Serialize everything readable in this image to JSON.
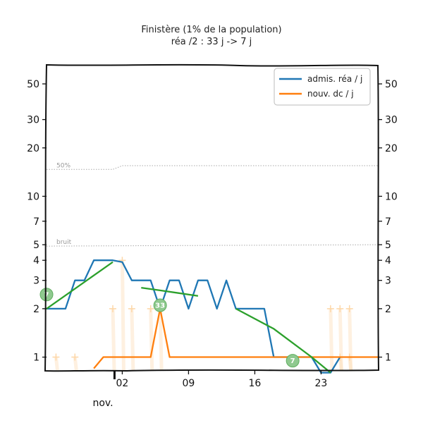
{
  "chart_data": {
    "type": "line",
    "title": "Finistère (1% de la population)",
    "subtitle": "réa /2 : 33 j -> 7 j",
    "y_scale": "log",
    "ylim": [
      0.83,
      65
    ],
    "xlim": [
      "2020-10-25",
      "2020-11-29"
    ],
    "x_ticks": [
      "2020-11-02",
      "2020-11-09",
      "2020-11-16",
      "2020-11-23"
    ],
    "x_tick_labels": [
      "02",
      "09",
      "16",
      "23"
    ],
    "month_label": "nov.",
    "y_ticks": [
      1,
      2,
      3,
      4,
      5,
      7,
      10,
      20,
      30,
      50
    ],
    "y_tick_labels": [
      "1",
      "2",
      "3",
      "4",
      "5",
      "7",
      "10",
      "20",
      "30",
      "50"
    ],
    "reference_lines": [
      {
        "label": "50%",
        "points": [
          [
            "2020-10-25",
            14.7
          ],
          [
            "2020-11-01",
            14.7
          ],
          [
            "2020-11-02",
            15.5
          ],
          [
            "2020-11-29",
            15.5
          ]
        ]
      },
      {
        "label": "bruit",
        "points": [
          [
            "2020-10-25",
            4.9
          ],
          [
            "2020-11-29",
            5.0
          ]
        ]
      }
    ],
    "legend": {
      "position": "top-right"
    },
    "series": [
      {
        "name": "admis. réa / j",
        "color": "#1f77b4",
        "x": [
          "2020-10-25",
          "2020-10-26",
          "2020-10-27",
          "2020-10-28",
          "2020-10-29",
          "2020-10-30",
          "2020-10-31",
          "2020-11-01",
          "2020-11-02",
          "2020-11-03",
          "2020-11-04",
          "2020-11-05",
          "2020-11-06",
          "2020-11-07",
          "2020-11-08",
          "2020-11-09",
          "2020-11-10",
          "2020-11-11",
          "2020-11-12",
          "2020-11-13",
          "2020-11-14",
          "2020-11-15",
          "2020-11-16",
          "2020-11-17",
          "2020-11-18",
          "2020-11-19",
          "2020-11-20",
          "2020-11-21",
          "2020-11-22",
          "2020-11-23",
          "2020-11-24",
          "2020-11-25"
        ],
        "values": [
          2,
          2,
          2,
          3,
          3,
          4,
          4,
          4,
          3.9,
          3,
          3,
          3,
          2,
          3,
          3,
          2,
          3,
          3,
          2,
          3,
          2,
          2,
          2,
          2,
          1,
          1,
          1,
          1,
          1,
          0.8,
          0.8,
          1
        ]
      },
      {
        "name": "nouv. dc / j",
        "color": "#ff7f0e",
        "x": [
          "2020-10-30",
          "2020-10-31",
          "2020-11-01",
          "2020-11-02",
          "2020-11-03",
          "2020-11-04",
          "2020-11-05",
          "2020-11-06",
          "2020-11-07",
          "2020-11-08",
          "2020-11-09",
          "2020-11-10",
          "2020-11-11",
          "2020-11-12",
          "2020-11-13",
          "2020-11-14",
          "2020-11-15",
          "2020-11-16",
          "2020-11-17",
          "2020-11-18",
          "2020-11-19",
          "2020-11-20",
          "2020-11-21",
          "2020-11-22",
          "2020-11-23",
          "2020-11-24",
          "2020-11-25",
          "2020-11-26",
          "2020-11-27",
          "2020-11-28",
          "2020-11-29"
        ],
        "values": [
          0.85,
          1,
          1,
          1,
          1,
          1,
          1,
          2,
          1,
          1,
          1,
          1,
          1,
          1,
          1,
          1,
          1,
          1,
          1,
          1,
          1,
          1,
          1,
          1,
          1,
          1,
          1,
          1,
          1,
          1,
          1
        ]
      }
    ],
    "trends": [
      {
        "color": "#2ca02c",
        "points": [
          [
            "2020-10-25",
            2.0
          ],
          [
            "2020-11-01",
            3.9
          ]
        ],
        "bubble": {
          "label": "7",
          "at": [
            "2020-10-25",
            2.45
          ]
        }
      },
      {
        "color": "#2ca02c",
        "points": [
          [
            "2020-11-04",
            2.7
          ],
          [
            "2020-11-06",
            2.6
          ],
          [
            "2020-11-08",
            2.5
          ],
          [
            "2020-11-10",
            2.4
          ]
        ],
        "bubble": {
          "label": "33",
          "at": [
            "2020-11-06",
            2.1
          ]
        }
      },
      {
        "color": "#2ca02c",
        "points": [
          [
            "2020-11-14",
            2.0
          ],
          [
            "2020-11-18",
            1.5
          ],
          [
            "2020-11-22",
            1.0
          ],
          [
            "2020-11-24",
            0.8
          ]
        ],
        "bubble": {
          "label": "7",
          "at": [
            "2020-11-20",
            0.95
          ]
        }
      }
    ],
    "markers": {
      "color": "#fdd7a8",
      "points": [
        [
          "2020-10-26",
          1
        ],
        [
          "2020-10-28",
          1
        ],
        [
          "2020-11-01",
          2
        ],
        [
          "2020-11-02",
          4
        ],
        [
          "2020-11-03",
          2
        ],
        [
          "2020-11-05",
          2
        ],
        [
          "2020-11-06",
          2
        ],
        [
          "2020-11-24",
          2
        ],
        [
          "2020-11-25",
          2
        ],
        [
          "2020-11-26",
          2
        ],
        [
          "2020-11-25",
          1
        ],
        [
          "2020-11-26",
          1
        ]
      ]
    }
  }
}
